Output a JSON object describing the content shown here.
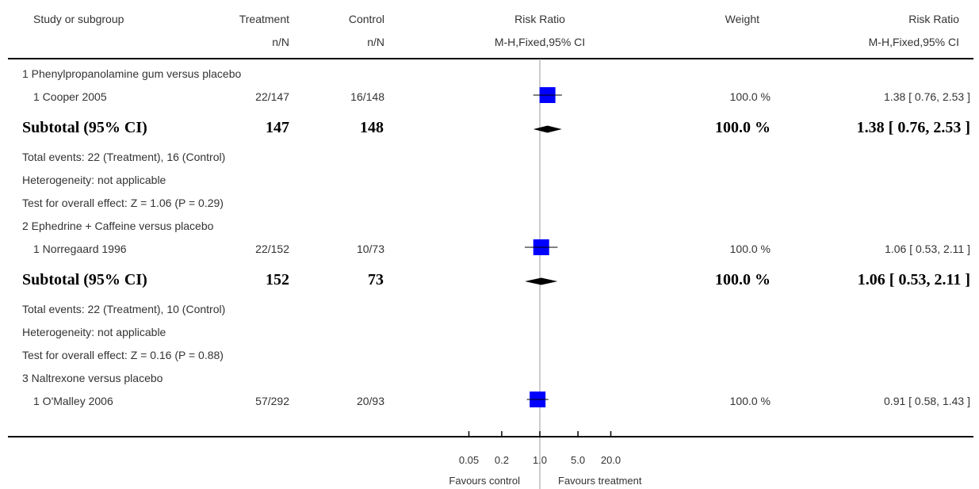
{
  "headers": {
    "study": "Study or subgroup",
    "treatment": "Treatment",
    "treatment_sub": "n/N",
    "control": "Control",
    "control_sub": "n/N",
    "rr_plot": "Risk Ratio",
    "rr_plot_sub": "M-H,Fixed,95% CI",
    "weight": "Weight",
    "rr_text": "Risk Ratio",
    "rr_text_sub": "M-H,Fixed,95% CI"
  },
  "groups": [
    {
      "title": "1 Phenylpropanolamine gum versus placebo",
      "study": {
        "name": "1 Cooper 2005",
        "treatment": "22/147",
        "control": "16/148",
        "weight": "100.0 %",
        "ci_text": "1.38 [ 0.76, 2.53 ]"
      },
      "subtotal": {
        "label": "Subtotal (95% CI)",
        "treatment": "147",
        "control": "148",
        "weight": "100.0 %",
        "ci_text": "1.38 [ 0.76, 2.53 ]"
      },
      "events": "Total events: 22 (Treatment), 16 (Control)",
      "heterogeneity": "Heterogeneity: not applicable",
      "overall": "Test for overall effect: Z = 1.06 (P = 0.29)"
    },
    {
      "title": "2 Ephedrine + Caffeine versus placebo",
      "study": {
        "name": "1 Norregaard 1996",
        "treatment": "22/152",
        "control": "10/73",
        "weight": "100.0 %",
        "ci_text": "1.06 [ 0.53, 2.11 ]"
      },
      "subtotal": {
        "label": "Subtotal (95% CI)",
        "treatment": "152",
        "control": "73",
        "weight": "100.0 %",
        "ci_text": "1.06 [ 0.53, 2.11 ]"
      },
      "events": "Total events: 22 (Treatment), 10 (Control)",
      "heterogeneity": "Heterogeneity: not applicable",
      "overall": "Test for overall effect: Z = 0.16 (P = 0.88)"
    },
    {
      "title": "3 Naltrexone versus placebo",
      "study": {
        "name": "1 O'Malley 2006",
        "treatment": "57/292",
        "control": "20/93",
        "weight": "100.0 %",
        "ci_text": "0.91 [ 0.58, 1.43 ]"
      }
    }
  ],
  "axis": {
    "ticks": [
      "0.05",
      "0.2",
      "1.0",
      "5.0",
      "20.0"
    ],
    "favours_left": "Favours control",
    "favours_right": "Favours treatment"
  },
  "colors": {
    "marker": "#0000ff",
    "diamond": "#000000",
    "line": "#000000",
    "null_line": "#999999"
  },
  "chart_data": {
    "type": "forest",
    "scale": "log",
    "xlim": [
      0.05,
      20
    ],
    "x_ticks": [
      0.05,
      0.2,
      1,
      5,
      20
    ],
    "studies": [
      {
        "name": "1 Cooper 2005",
        "rr": 1.38,
        "lo": 0.76,
        "hi": 2.53,
        "weight": 100.0
      },
      {
        "name": "1 Norregaard 1996",
        "rr": 1.06,
        "lo": 0.53,
        "hi": 2.11,
        "weight": 100.0
      },
      {
        "name": "1 O'Malley 2006",
        "rr": 0.91,
        "lo": 0.58,
        "hi": 1.43,
        "weight": 100.0
      }
    ],
    "subtotals": [
      {
        "label": "Subtotal (95% CI)",
        "rr": 1.38,
        "lo": 0.76,
        "hi": 2.53
      },
      {
        "label": "Subtotal (95% CI)",
        "rr": 1.06,
        "lo": 0.53,
        "hi": 2.11
      }
    ]
  }
}
